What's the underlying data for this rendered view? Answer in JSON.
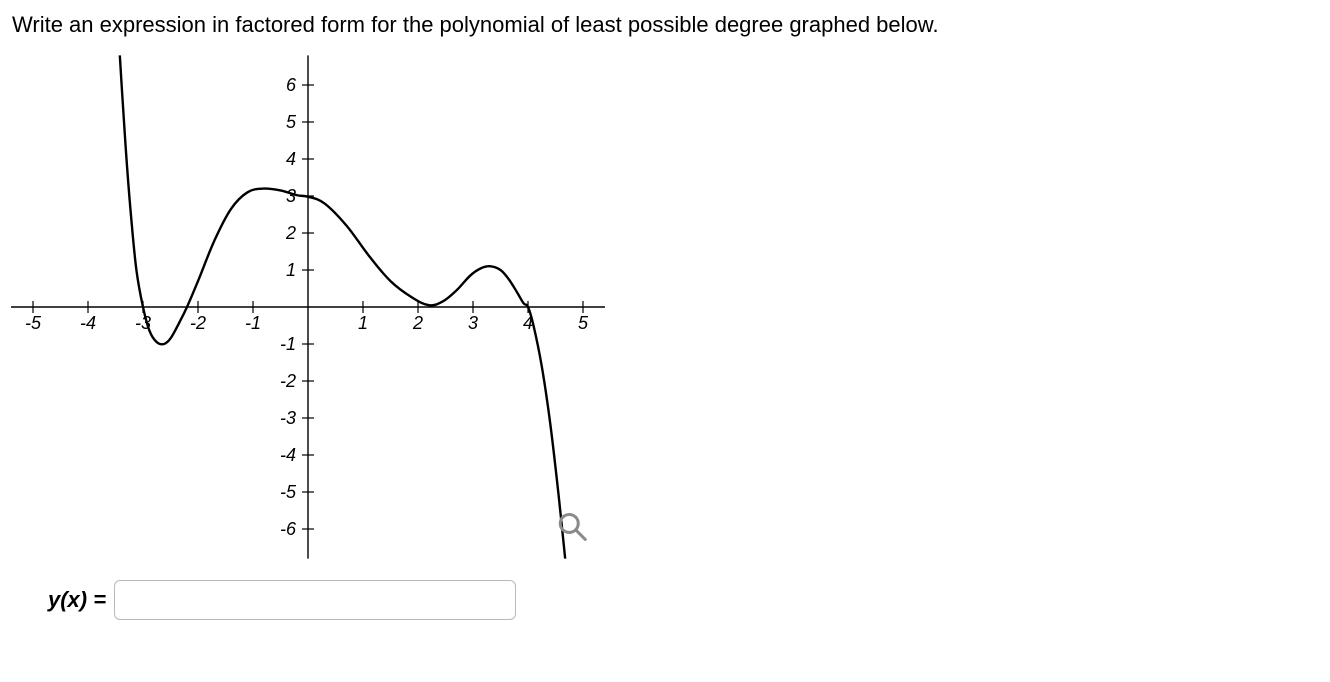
{
  "prompt": "Write an expression in factored form for the polynomial of least possible degree graphed below.",
  "chart": {
    "type": "line",
    "x_ticks": [
      -5,
      -4,
      -3,
      -2,
      -1,
      1,
      2,
      3,
      4,
      5
    ],
    "y_ticks": [
      6,
      5,
      4,
      3,
      2,
      1,
      -1,
      -2,
      -3,
      -4,
      -5,
      -6
    ],
    "xlim": [
      -5.4,
      5.4
    ],
    "ylim": [
      -6.8,
      6.8
    ],
    "axis_color": "#000000",
    "background_color": "#ffffff",
    "tick_length": 6,
    "tick_label_fontsize": 18,
    "tick_label_font": "Comic Sans MS",
    "curve_color": "#000000",
    "curve_width": 2.4,
    "curve_points": [
      [
        -3.45,
        7.5
      ],
      [
        -3.38,
        5.8
      ],
      [
        -3.3,
        4.0
      ],
      [
        -3.22,
        2.5
      ],
      [
        -3.12,
        1.0
      ],
      [
        -3.0,
        0.0
      ],
      [
        -2.88,
        -0.65
      ],
      [
        -2.75,
        -0.95
      ],
      [
        -2.62,
        -1.0
      ],
      [
        -2.5,
        -0.85
      ],
      [
        -2.35,
        -0.45
      ],
      [
        -2.2,
        0.0
      ],
      [
        -2.0,
        0.7
      ],
      [
        -1.7,
        1.8
      ],
      [
        -1.4,
        2.65
      ],
      [
        -1.1,
        3.1
      ],
      [
        -0.8,
        3.2
      ],
      [
        -0.5,
        3.15
      ],
      [
        -0.2,
        3.02
      ],
      [
        0.0,
        2.98
      ],
      [
        0.3,
        2.8
      ],
      [
        0.7,
        2.2
      ],
      [
        1.1,
        1.4
      ],
      [
        1.5,
        0.7
      ],
      [
        1.9,
        0.25
      ],
      [
        2.2,
        0.05
      ],
      [
        2.45,
        0.15
      ],
      [
        2.7,
        0.45
      ],
      [
        2.95,
        0.85
      ],
      [
        3.15,
        1.05
      ],
      [
        3.32,
        1.1
      ],
      [
        3.5,
        1.0
      ],
      [
        3.65,
        0.75
      ],
      [
        3.8,
        0.4
      ],
      [
        3.92,
        0.1
      ],
      [
        4.0,
        0.0
      ],
      [
        4.1,
        -0.5
      ],
      [
        4.25,
        -1.6
      ],
      [
        4.4,
        -3.1
      ],
      [
        4.55,
        -5.0
      ],
      [
        4.7,
        -7.15
      ]
    ],
    "magnifier_color": "#8a8a8a"
  },
  "answer": {
    "label": "y(x) =",
    "value": ""
  }
}
